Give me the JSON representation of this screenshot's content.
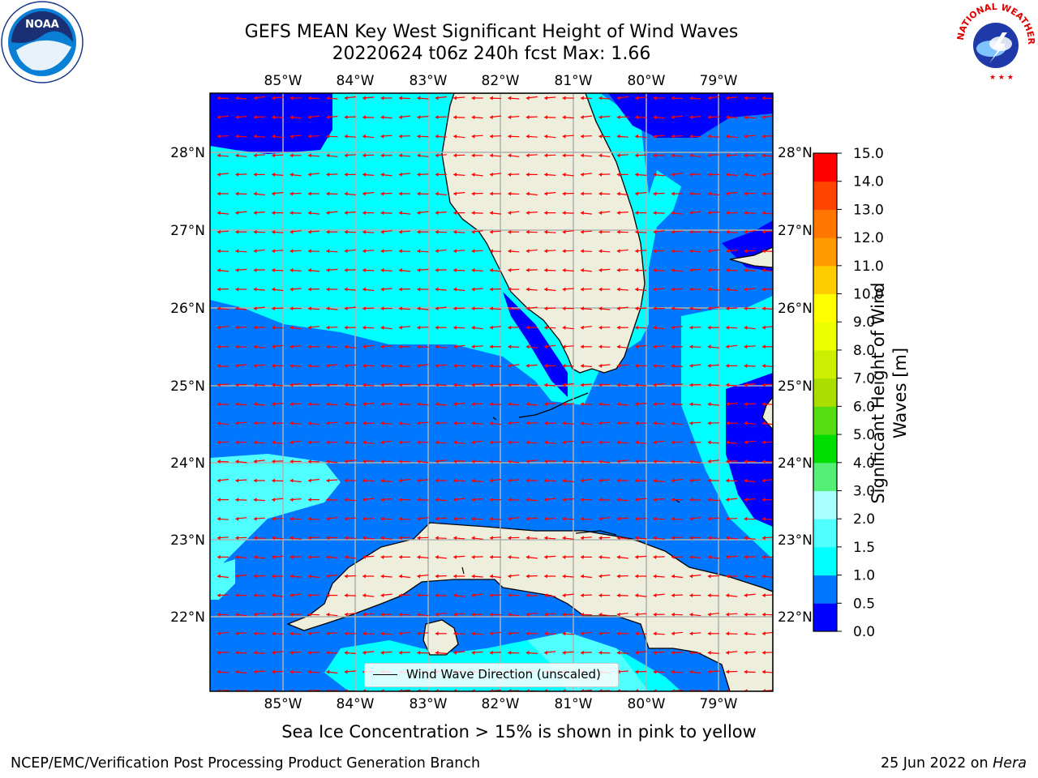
{
  "title": {
    "line1": "GEFS MEAN Key West Significant Height of Wind Waves",
    "line2": "20220624 t06z 240h fcst   Max: 1.66"
  },
  "map": {
    "lon_labels": [
      "85°W",
      "84°W",
      "83°W",
      "82°W",
      "81°W",
      "80°W",
      "79°W"
    ],
    "lat_labels": [
      "28°N",
      "27°N",
      "26°N",
      "25°N",
      "24°N",
      "23°N",
      "22°N"
    ],
    "legend": "Wind Wave Direction (unscaled)",
    "colors": {
      "land": "#eeeedd",
      "coast": "#000000",
      "grid": "#b0b0b0",
      "arrow": "#ff0000"
    },
    "arrow_direction": "westward"
  },
  "colorbar": {
    "label": "Significant Height of Wind Waves [m]",
    "ticks": [
      "0.0",
      "0.5",
      "1.0",
      "1.5",
      "2.0",
      "3.0",
      "4.0",
      "5.0",
      "6.0",
      "7.0",
      "8.0",
      "9.0",
      "10.0",
      "11.0",
      "12.0",
      "13.0",
      "14.0",
      "15.0"
    ],
    "colors": [
      "#0000ff",
      "#0077ff",
      "#00ffff",
      "#50ffff",
      "#a8ffff",
      "#55ee77",
      "#00dd00",
      "#55dd11",
      "#aadd00",
      "#ccee00",
      "#eeff00",
      "#ffff00",
      "#ffcc00",
      "#ff9900",
      "#ff7700",
      "#ff4400",
      "#ff0000"
    ]
  },
  "footer": {
    "ice_note": "Sea Ice Concentration > 15% is shown in pink to yellow",
    "credit": "NCEP/EMC/Verification Post Processing Product Generation Branch",
    "date_prefix": "25 Jun 2022 on ",
    "date_machine": "Hera"
  },
  "logos": {
    "noaa": "NOAA",
    "nws": "NATIONAL WEATHER SERVICE"
  }
}
